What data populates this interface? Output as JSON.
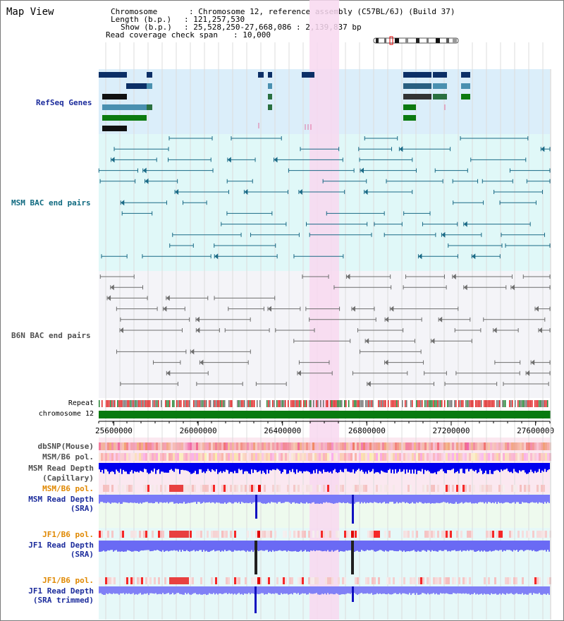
{
  "title": "Map View",
  "info": {
    "chromosome_key": "Chromosome",
    "chromosome_value": "Chromosome 12, reference assembly (C57BL/6J) (Build 37)",
    "length_key": "Length (b.p.)",
    "length_value": "121,257,530",
    "show_key": "Show (b.p.)",
    "show_value": "25,528,250-27,668,086 : 2,139,837 bp",
    "coverage_key": "Read coverage check span",
    "coverage_value": "10,000"
  },
  "tracks": {
    "refseq": "RefSeq Genes",
    "msm_bac": "MSM BAC end pairs",
    "b6n_bac": "B6N BAC end pairs",
    "repeat": "Repeat",
    "chromosome": "chromosome 12",
    "dbsnp": "dbSNP(Mouse)",
    "msm_b6_pol_1": "MSM/B6 pol.",
    "msm_depth_cap_1": "MSM Read Depth",
    "msm_depth_cap_2": "(Capillary)",
    "msm_b6_pol_2": "MSM/B6 pol.",
    "msm_depth_sra_1": "MSM Read Depth",
    "msm_depth_sra_2": "(SRA)",
    "jf1_pol_1": "JF1/B6 pol.",
    "jf1_depth_sra_1": "JF1 Read Depth",
    "jf1_depth_sra_2": "(SRA)",
    "jf1_pol_2": "JF1/B6 pol.",
    "jf1_depth_trim_1": "JF1 Read Depth",
    "jf1_depth_trim_2": "(SRA trimmed)"
  },
  "axis": {
    "ticks": [
      "25600000",
      "26000000",
      "26400000",
      "26800000",
      "27200000",
      "27600000"
    ]
  },
  "colors": {
    "highlight": "#f8d8f0",
    "refseq_bg": "#dbeefa",
    "msm_bac_bg": "#e0f8f8",
    "b6n_bg": "#f4f4f8",
    "refseq_label": "#1c2c9c",
    "msm_label": "#106a80",
    "b6n_label": "#505050",
    "orange_label": "#e08800",
    "blue_label": "#1c2c9c",
    "chromosome_bar": "#087a10",
    "depth_blue": "#0000ee",
    "depth_light": "#7a7af8"
  }
}
